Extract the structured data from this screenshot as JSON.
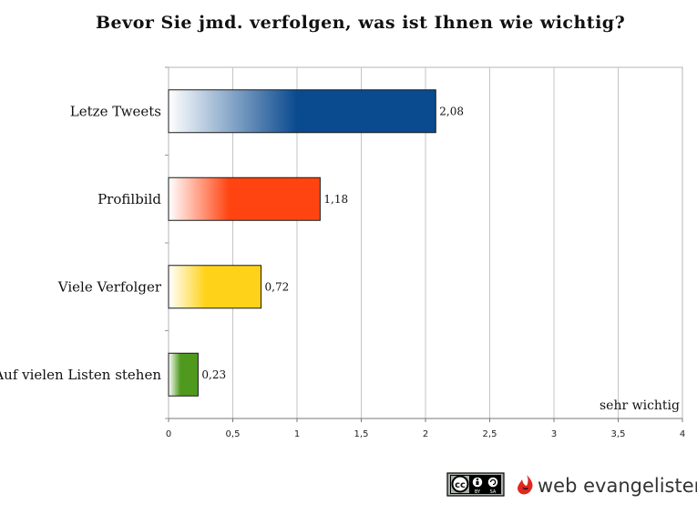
{
  "chart_data": {
    "type": "bar",
    "orientation": "horizontal",
    "title": "Bevor Sie jmd. verfolgen, was ist Ihnen wie wichtig?",
    "categories": [
      "Letze Tweets",
      "Profilbild",
      "Viele Verfolger",
      "Auf vielen Listen stehen"
    ],
    "values": [
      2.08,
      1.18,
      0.72,
      0.23
    ],
    "value_labels": [
      "2,08",
      "1,18",
      "0,72",
      "0,23"
    ],
    "bar_colors": [
      "#0a4a8f",
      "#ff4411",
      "#ffd21a",
      "#4f9a1e"
    ],
    "xlim": [
      0,
      4
    ],
    "xticks": [
      0,
      0.5,
      1,
      1.5,
      2,
      2.5,
      3,
      3.5,
      4
    ],
    "xtick_labels": [
      "0",
      "0,5",
      "1",
      "1,5",
      "2",
      "2,5",
      "3",
      "3,5",
      "4"
    ],
    "grid": true,
    "annotation": "sehr wichtig"
  },
  "footer": {
    "cc_text": "cc",
    "cc_by": "BY",
    "cc_sa": "SA",
    "brand_text": "web evangelisten"
  }
}
